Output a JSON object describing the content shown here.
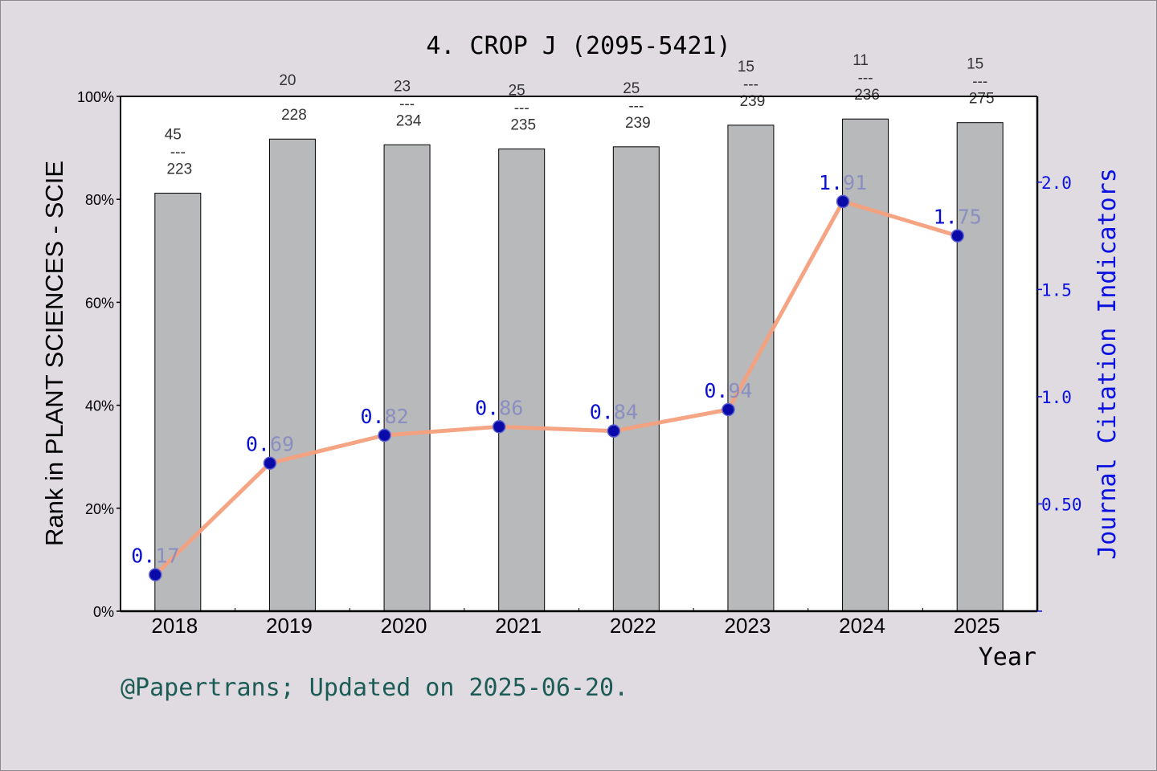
{
  "chart_data": {
    "type": "bar",
    "title": "4. CROP J (2095-5421)",
    "xlabel": "Year",
    "ylabel": "Rank in PLANT SCIENCES - SCIE",
    "y2label": "Journal Citation Indicators",
    "categories": [
      "2018",
      "2019",
      "2020",
      "2021",
      "2022",
      "2023",
      "2024",
      "2025"
    ],
    "rank_labels": [
      {
        "rank": "45",
        "sep": "---",
        "total": "223"
      },
      {
        "rank": "20",
        "sep": "",
        "total": "228"
      },
      {
        "rank": "23",
        "sep": "---",
        "total": "234"
      },
      {
        "rank": "25",
        "sep": "---",
        "total": "235"
      },
      {
        "rank": "25",
        "sep": "---",
        "total": "239"
      },
      {
        "rank": "15",
        "sep": "---",
        "total": "239"
      },
      {
        "rank": "11",
        "sep": "---",
        "total": "236"
      },
      {
        "rank": "15",
        "sep": "---",
        "total": "275"
      }
    ],
    "series": [
      {
        "type": "bar",
        "axis": "left",
        "values": [
          81.2,
          91.7,
          90.6,
          89.8,
          90.2,
          94.4,
          95.6,
          94.9
        ]
      },
      {
        "type": "line",
        "axis": "right",
        "values": [
          0.17,
          0.69,
          0.82,
          0.86,
          0.84,
          0.94,
          1.91,
          1.75
        ],
        "labels": [
          "0.17",
          "0.69",
          "0.82",
          "0.86",
          "0.84",
          "0.94",
          "1.91",
          "1.75"
        ]
      }
    ],
    "ylim": [
      0,
      100
    ],
    "yticks": [
      "0%",
      "20%",
      "40%",
      "60%",
      "80%",
      "100%"
    ],
    "y2lim": [
      0,
      2.4
    ],
    "y2ticks": [
      {
        "v": 0.5,
        "label": "0.50"
      },
      {
        "v": 1.0,
        "label": "1.0"
      },
      {
        "v": 1.5,
        "label": "1.5"
      },
      {
        "v": 2.0,
        "label": "2.0"
      }
    ],
    "grid": false,
    "colors": {
      "bar": "#b8b9bb",
      "line": "#f4a07d",
      "marker": "#0a0aa8",
      "right_axis": "#0a10e0",
      "footer": "#1d5c56",
      "point_label": "#8a8ec0"
    }
  },
  "footer": "@Papertrans; Updated on 2025-06-20."
}
